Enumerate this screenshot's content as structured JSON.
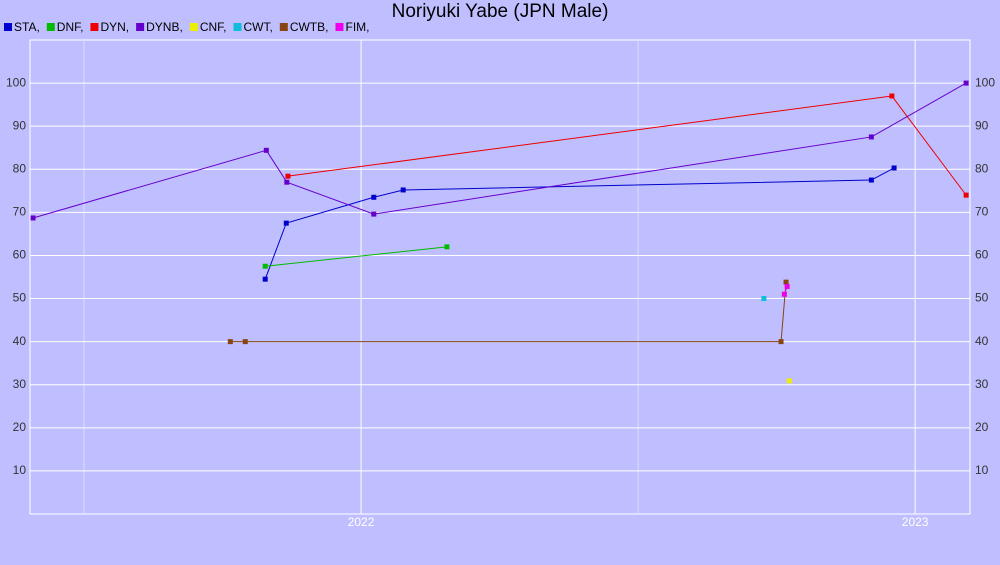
{
  "chart_data": {
    "type": "line",
    "title": "Noriyuki Yabe (JPN Male)",
    "xlim": [
      2021.4025,
      2023.099
    ],
    "xticks": [
      2022,
      2023
    ],
    "x_minor_ticks": [
      2021.5,
      2022.5
    ],
    "ylim": [
      0,
      110
    ],
    "yticks": [
      10,
      20,
      30,
      40,
      50,
      60,
      70,
      80,
      90,
      100
    ],
    "grid": true,
    "legend": "top-left",
    "series": [
      {
        "name": "STA,",
        "color": "#0000cc",
        "x": [
          2021.827,
          2021.865,
          2022.023,
          2022.076,
          2022.921,
          2022.962
        ],
        "values": [
          54.5,
          67.5,
          73.5,
          75.2,
          77.5,
          80.3
        ]
      },
      {
        "name": "DNF,",
        "color": "#00bb00",
        "x": [
          2021.827,
          2022.155
        ],
        "values": [
          57.5,
          62
        ]
      },
      {
        "name": "DYN,",
        "color": "#ee0000",
        "x": [
          2021.868,
          2022.958,
          2023.092
        ],
        "values": [
          78.4,
          97,
          74
        ]
      },
      {
        "name": "DYNB,",
        "color": "#6600cc",
        "x": [
          2021.408,
          2021.829,
          2021.866,
          2022.023,
          2022.921,
          2023.092
        ],
        "values": [
          68.7,
          84.4,
          77,
          69.6,
          87.5,
          100
        ]
      },
      {
        "name": "CNF,",
        "color": "#eeee00",
        "x": [
          2022.773
        ],
        "values": [
          30.9
        ]
      },
      {
        "name": "CWT,",
        "color": "#11bbdd",
        "x": [
          2022.727
        ],
        "values": [
          50
        ]
      },
      {
        "name": "CWTB,",
        "color": "#884411",
        "x": [
          2021.764,
          2021.791,
          2022.758,
          2022.767
        ],
        "values": [
          40,
          40,
          40,
          53.8
        ]
      },
      {
        "name": "FIM,",
        "color": "#ee00ee",
        "x": [
          2022.764,
          2022.769
        ],
        "values": [
          51,
          52.8
        ]
      }
    ]
  }
}
